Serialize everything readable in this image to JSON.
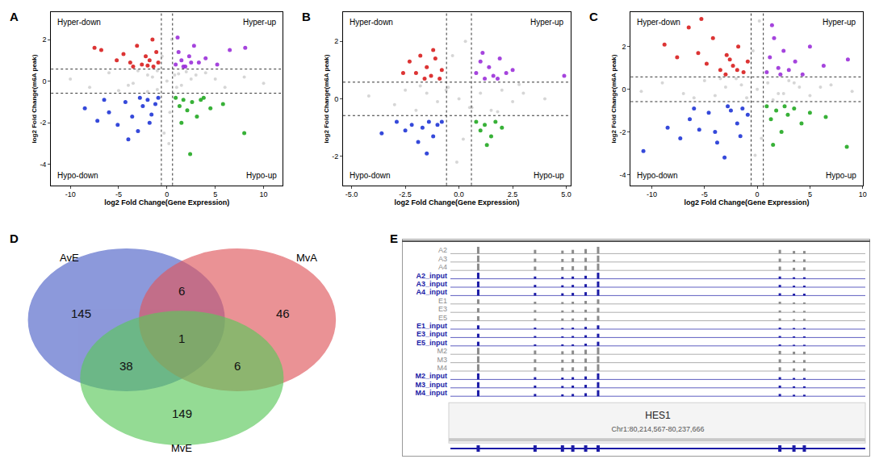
{
  "chart_data": [
    {
      "type": "scatter",
      "panel": "A",
      "x_label": "log2 Fold Change(Gene Expression)",
      "y_label": "log2 Fold Change(m6A peak)",
      "xlim": [
        -12,
        12
      ],
      "ylim": [
        -5,
        3.3
      ],
      "xticks": [
        -10,
        -5,
        0,
        5,
        10
      ],
      "yticks": [
        -4,
        -2,
        0,
        2
      ],
      "vlines": [
        -0.58,
        0.58
      ],
      "hlines": [
        -0.58,
        0.58
      ],
      "grid": false,
      "marker": "circle",
      "series": [
        {
          "name": "Hyper-down",
          "color": "#d81e1e",
          "x": [
            -7.5,
            -6.8,
            -5.2,
            -4.5,
            -3.8,
            -3.1,
            -2.6,
            -2.2,
            -1.8,
            -1.4,
            -1.1,
            -0.9,
            -3.5,
            -2.0,
            -1.5
          ],
          "y": [
            1.6,
            1.5,
            1.0,
            1.3,
            0.9,
            1.7,
            0.8,
            1.2,
            1.0,
            0.7,
            1.4,
            0.9,
            0.7,
            0.75,
            2.0
          ]
        },
        {
          "name": "Hyper-up",
          "color": "#9b30d9",
          "x": [
            0.9,
            1.2,
            1.5,
            1.9,
            2.3,
            2.8,
            3.3,
            4.0,
            5.2,
            6.5,
            8.1,
            1.1,
            1.7,
            2.5
          ],
          "y": [
            0.8,
            1.4,
            1.0,
            0.7,
            1.2,
            1.7,
            0.9,
            1.1,
            0.8,
            1.5,
            1.6,
            2.1,
            0.7,
            0.9
          ]
        },
        {
          "name": "Hypo-down",
          "color": "#1f35d6",
          "x": [
            -8.5,
            -7.2,
            -6.0,
            -5.1,
            -4.3,
            -3.6,
            -3.0,
            -2.5,
            -2.0,
            -1.6,
            -1.2,
            -0.9,
            -4.0,
            -2.8,
            -1.8,
            -6.5
          ],
          "y": [
            -1.3,
            -1.9,
            -1.5,
            -2.1,
            -1.0,
            -1.7,
            -2.4,
            -1.2,
            -0.9,
            -1.6,
            -1.1,
            -0.8,
            -2.8,
            -0.8,
            -2.0,
            -0.9
          ]
        },
        {
          "name": "Hypo-up",
          "color": "#22a822",
          "x": [
            0.9,
            1.3,
            1.7,
            2.1,
            2.6,
            3.1,
            3.8,
            4.5,
            5.8,
            8.0,
            1.5,
            2.4,
            3.5
          ],
          "y": [
            -0.8,
            -1.2,
            -0.9,
            -1.4,
            -1.0,
            -1.7,
            -0.8,
            -1.3,
            -1.1,
            -2.5,
            -2.0,
            -3.5,
            -0.9
          ]
        },
        {
          "color": "#cccccc",
          "x": [
            -10,
            -8,
            -6,
            -4,
            -3,
            -2,
            -1,
            -0.5,
            0,
            0.3,
            0.8,
            1.5,
            2.5,
            4,
            6,
            8,
            10,
            -2,
            -1,
            0.5,
            1,
            2,
            -0.3,
            -5,
            3,
            -1.5,
            0.2,
            5,
            -3.5,
            1.2
          ],
          "y": [
            0.1,
            -0.3,
            0.4,
            -0.2,
            0.5,
            0.3,
            -0.4,
            1.2,
            0,
            -1.5,
            0.3,
            -0.2,
            0.1,
            0.4,
            -0.3,
            0.2,
            -0.1,
            -0.5,
            0.5,
            2.0,
            -0.3,
            0.45,
            -2.5,
            -0.45,
            0.3,
            0.2,
            -3,
            0.1,
            -0.1,
            0.35
          ]
        }
      ]
    },
    {
      "type": "scatter",
      "panel": "B",
      "x_label": "log2 Fold Change(Gene Expression)",
      "y_label": "log2 Fold Change(m6A peak)",
      "xlim": [
        -5.4,
        5.2
      ],
      "ylim": [
        -3,
        3
      ],
      "xticks": [
        {
          "value": -5,
          "label": "-5.0"
        },
        {
          "value": -2.5,
          "label": "-2.5"
        },
        {
          "value": 0,
          "label": "0.0"
        },
        {
          "value": 2.5,
          "label": "2.5"
        },
        {
          "value": 5,
          "label": "5.0"
        }
      ],
      "yticks": [
        -2,
        0,
        2
      ],
      "vlines": [
        -0.58,
        0.58
      ],
      "hlines": [
        -0.58,
        0.58
      ],
      "grid": false,
      "marker": "circle",
      "series": [
        {
          "name": "Hyper-down",
          "color": "#d81e1e",
          "x": [
            -2.3,
            -2.0,
            -1.8,
            -1.5,
            -1.3,
            -1.1,
            -0.9,
            -0.8,
            -1.6,
            -2.6,
            -1.2
          ],
          "y": [
            1.3,
            0.9,
            1.5,
            1.1,
            0.8,
            1.4,
            0.7,
            1.0,
            0.7,
            0.9,
            1.7
          ]
        },
        {
          "name": "Hyper-up",
          "color": "#9b30d9",
          "x": [
            0.8,
            1.0,
            1.2,
            1.4,
            1.6,
            1.9,
            2.2,
            2.5,
            1.1,
            1.8,
            4.9
          ],
          "y": [
            0.9,
            1.3,
            0.7,
            1.1,
            0.8,
            1.4,
            0.9,
            1.0,
            1.6,
            0.7,
            0.8
          ]
        },
        {
          "name": "Hypo-down",
          "color": "#1f35d6",
          "x": [
            -2.9,
            -2.5,
            -2.2,
            -1.9,
            -1.7,
            -1.4,
            -1.2,
            -1.0,
            -0.8,
            -3.6,
            -1.5
          ],
          "y": [
            -0.8,
            -1.1,
            -0.9,
            -1.5,
            -1.0,
            -0.8,
            -1.3,
            -0.9,
            -0.8,
            -1.2,
            -1.9
          ]
        },
        {
          "name": "Hypo-up",
          "color": "#22a822",
          "x": [
            0.8,
            1.0,
            1.2,
            1.5,
            1.7,
            2.0,
            1.3
          ],
          "y": [
            -0.8,
            -1.1,
            -0.9,
            -1.3,
            -0.8,
            -1.0,
            -1.6
          ]
        },
        {
          "color": "#cccccc",
          "x": [
            -4.2,
            -3,
            -2.5,
            -2,
            -1.5,
            -1,
            -0.5,
            0,
            0.5,
            1,
            1.5,
            2,
            2.5,
            3,
            4,
            -0.3,
            0.2,
            -0.1,
            0.3,
            -1.8,
            1.8,
            -0.6,
            0.6,
            2.8
          ],
          "y": [
            0.1,
            -0.2,
            0.3,
            -0.4,
            0.2,
            -0.1,
            0.4,
            0,
            -0.3,
            0.2,
            -0.4,
            0.3,
            -0.1,
            0.2,
            0,
            1.5,
            -1.4,
            -2.2,
            2.0,
            0.45,
            -0.45,
            0.3,
            -0.3,
            0.5
          ]
        }
      ]
    },
    {
      "type": "scatter",
      "panel": "C",
      "x_label": "log2 Fold Change(Gene Expression)",
      "y_label": "log2 Fold Change(m6A peak)",
      "xlim": [
        -12,
        10
      ],
      "ylim": [
        -4.5,
        3.6
      ],
      "xticks": [
        -10,
        -5,
        0,
        5,
        10
      ],
      "yticks": [
        -4,
        -2,
        0,
        2
      ],
      "vlines": [
        -0.58,
        0.58
      ],
      "hlines": [
        -0.58,
        0.58
      ],
      "grid": false,
      "marker": "circle",
      "series": [
        {
          "name": "Hyper-down",
          "color": "#d81e1e",
          "x": [
            -8.8,
            -7.6,
            -6.5,
            -5.6,
            -4.8,
            -4.2,
            -3.5,
            -2.9,
            -2.3,
            -1.8,
            -1.3,
            -0.9,
            -5.3,
            -3.0,
            -1.9,
            -2.6
          ],
          "y": [
            2.1,
            1.5,
            2.9,
            1.7,
            1.2,
            2.4,
            0.9,
            1.6,
            1.1,
            2.0,
            0.8,
            1.3,
            3.3,
            0.7,
            0.9,
            1.4
          ]
        },
        {
          "name": "Hyper-up",
          "color": "#9b30d9",
          "x": [
            0.9,
            1.2,
            1.6,
            2.0,
            2.5,
            3.0,
            3.6,
            4.3,
            5.0,
            6.3,
            8.6,
            1.4,
            2.2
          ],
          "y": [
            0.8,
            1.5,
            2.4,
            1.0,
            1.8,
            0.9,
            1.3,
            0.7,
            2.0,
            1.1,
            1.4,
            3.0,
            0.7
          ]
        },
        {
          "name": "Hypo-down",
          "color": "#1f35d6",
          "x": [
            -10.8,
            -8.5,
            -7.3,
            -6.4,
            -5.5,
            -4.6,
            -3.8,
            -3.1,
            -2.5,
            -1.9,
            -1.4,
            -0.9,
            -4.0,
            -2.8,
            -1.6,
            -6.0
          ],
          "y": [
            -2.9,
            -1.8,
            -2.3,
            -1.4,
            -1.9,
            -1.1,
            -2.5,
            -3.2,
            -1.0,
            -1.6,
            -0.9,
            -1.2,
            -2.0,
            -0.8,
            -2.2,
            -0.9
          ]
        },
        {
          "name": "Hypo-up",
          "color": "#22a822",
          "x": [
            0.9,
            1.3,
            1.8,
            2.3,
            2.9,
            3.5,
            4.2,
            5.0,
            6.5,
            8.5,
            1.5,
            2.6
          ],
          "y": [
            -0.8,
            -1.4,
            -1.0,
            -2.0,
            -1.2,
            -0.9,
            -1.6,
            -1.1,
            -1.3,
            -2.7,
            -2.6,
            -0.8
          ]
        },
        {
          "color": "#cccccc",
          "x": [
            -11,
            -9,
            -7,
            -5,
            -4,
            -3,
            -2,
            -1,
            -0.4,
            0,
            0.4,
            1,
            2,
            3,
            4,
            5,
            7,
            9,
            -6,
            -1.5,
            0.2,
            -0.2,
            1.5,
            3.5,
            -3.5,
            2.5,
            6
          ],
          "y": [
            -0.1,
            0.3,
            -0.2,
            0.4,
            -0.3,
            0.1,
            0.5,
            -0.4,
            1.8,
            0,
            -2.3,
            0.3,
            -0.2,
            0.4,
            0.1,
            -0.3,
            0.2,
            -0.1,
            -0.4,
            0.2,
            3.2,
            -3.1,
            -0.5,
            0.3,
            0.5,
            -0.2,
            0.1
          ]
        }
      ]
    },
    {
      "type": "venn",
      "panel": "D",
      "sets": [
        {
          "name": "AvE",
          "color": "#4f63c8"
        },
        {
          "name": "MvA",
          "color": "#e0585e"
        },
        {
          "name": "MvE",
          "color": "#5bc85b"
        }
      ],
      "regions": [
        {
          "sets": [
            "AvE"
          ],
          "value": 145
        },
        {
          "sets": [
            "MvA"
          ],
          "value": 46
        },
        {
          "sets": [
            "MvE"
          ],
          "value": 149
        },
        {
          "sets": [
            "AvE",
            "MvA"
          ],
          "value": 6
        },
        {
          "sets": [
            "AvE",
            "MvE"
          ],
          "value": 38
        },
        {
          "sets": [
            "MvA",
            "MvE"
          ],
          "value": 6
        },
        {
          "sets": [
            "AvE",
            "MvA",
            "MvE"
          ],
          "value": 1
        }
      ]
    },
    {
      "type": "track",
      "panel": "E",
      "gene": "HES1",
      "region_label": "Chr1:80,214,567-80,237,666",
      "start": 80214567,
      "end": 80237666,
      "peaks": [
        80216115,
        80219279,
        80220804,
        80221381,
        80222097,
        80222790,
        80232908,
        80233693,
        80234271
      ],
      "rows": [
        {
          "label": "A2",
          "color": "#8c8c8c",
          "heights": [
            0.9,
            0.5,
            0.4,
            0.5,
            0.6,
            0.9,
            0.5,
            0.35,
            0.35
          ]
        },
        {
          "label": "A3",
          "color": "#8c8c8c",
          "heights": [
            0.85,
            0.45,
            0.4,
            0.5,
            0.55,
            0.85,
            0.45,
            0.3,
            0.35
          ]
        },
        {
          "label": "A4",
          "color": "#8c8c8c",
          "heights": [
            0.9,
            0.5,
            0.45,
            0.55,
            0.6,
            0.9,
            0.5,
            0.35,
            0.4
          ]
        },
        {
          "label": "A2_input",
          "color": "#1a1aa6",
          "heights": [
            0.8,
            0.3,
            0.25,
            0.3,
            0.4,
            0.8,
            0.3,
            0.2,
            0.2
          ]
        },
        {
          "label": "A3_input",
          "color": "#1a1aa6",
          "heights": [
            0.75,
            0.3,
            0.25,
            0.3,
            0.4,
            0.75,
            0.3,
            0.2,
            0.2
          ]
        },
        {
          "label": "A4_input",
          "color": "#1a1aa6",
          "heights": [
            0.8,
            0.35,
            0.3,
            0.35,
            0.45,
            0.8,
            0.3,
            0.25,
            0.25
          ]
        },
        {
          "label": "E1",
          "color": "#8c8c8c",
          "heights": [
            0.6,
            0.3,
            0.25,
            0.3,
            0.4,
            0.6,
            0.3,
            0.2,
            0.2
          ]
        },
        {
          "label": "E3",
          "color": "#8c8c8c",
          "heights": [
            0.55,
            0.3,
            0.25,
            0.3,
            0.35,
            0.6,
            0.25,
            0.2,
            0.2
          ]
        },
        {
          "label": "E5",
          "color": "#8c8c8c",
          "heights": [
            0.6,
            0.3,
            0.3,
            0.3,
            0.4,
            0.65,
            0.3,
            0.2,
            0.25
          ]
        },
        {
          "label": "E1_input",
          "color": "#1a1aa6",
          "heights": [
            0.5,
            0.2,
            0.15,
            0.2,
            0.3,
            0.5,
            0.2,
            0.15,
            0.15
          ]
        },
        {
          "label": "E3_input",
          "color": "#1a1aa6",
          "heights": [
            0.5,
            0.2,
            0.15,
            0.2,
            0.3,
            0.5,
            0.2,
            0.15,
            0.15
          ]
        },
        {
          "label": "E5_input",
          "color": "#1a1aa6",
          "heights": [
            0.55,
            0.2,
            0.2,
            0.2,
            0.3,
            0.55,
            0.2,
            0.15,
            0.15
          ]
        },
        {
          "label": "M2",
          "color": "#8c8c8c",
          "heights": [
            0.85,
            0.5,
            0.4,
            0.5,
            0.6,
            0.9,
            0.45,
            0.35,
            0.35
          ]
        },
        {
          "label": "M3",
          "color": "#8c8c8c",
          "heights": [
            0.85,
            0.45,
            0.4,
            0.45,
            0.55,
            0.85,
            0.45,
            0.3,
            0.35
          ]
        },
        {
          "label": "M4",
          "color": "#8c8c8c",
          "heights": [
            0.9,
            0.5,
            0.45,
            0.5,
            0.6,
            0.9,
            0.5,
            0.35,
            0.35
          ]
        },
        {
          "label": "M2_input",
          "color": "#1a1aa6",
          "heights": [
            0.8,
            0.3,
            0.25,
            0.3,
            0.4,
            0.8,
            0.3,
            0.2,
            0.2
          ]
        },
        {
          "label": "M3_input",
          "color": "#1a1aa6",
          "heights": [
            0.75,
            0.3,
            0.25,
            0.3,
            0.4,
            0.75,
            0.3,
            0.2,
            0.2
          ]
        },
        {
          "label": "M4_input",
          "color": "#1a1aa6",
          "heights": [
            0.8,
            0.3,
            0.25,
            0.3,
            0.4,
            0.8,
            0.3,
            0.2,
            0.2
          ]
        }
      ]
    }
  ]
}
